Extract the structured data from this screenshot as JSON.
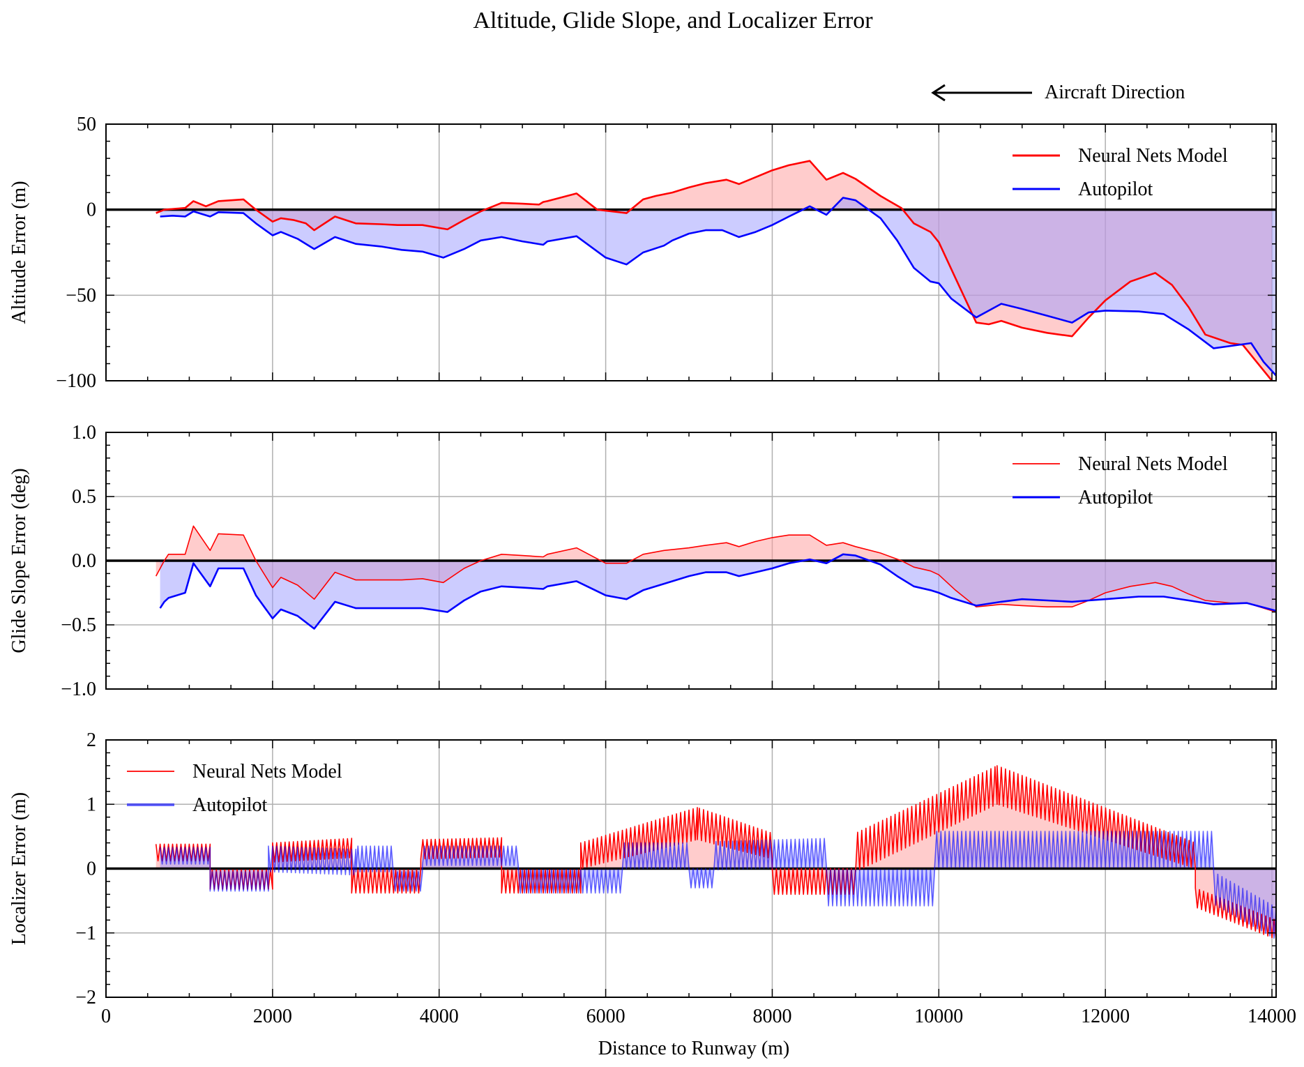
{
  "figure": {
    "title": "Altitude, Glide Slope, and Localizer Error",
    "direction_label": "Aircraft Direction",
    "xlabel": "Distance to Runway (m)"
  },
  "colors": {
    "nn": "#ff0000",
    "ap": "#0000ff",
    "nn_fill": "#ff9999",
    "ap_fill": "#9999ff",
    "zero": "#000000",
    "grid": "#b0b0b0"
  },
  "icons": {
    "direction_arrow": "left-arrow-icon"
  },
  "chart_data": [
    {
      "type": "line",
      "ylabel": "Altitude Error (m)",
      "xlim": [
        0,
        14050
      ],
      "ylim": [
        -100,
        50
      ],
      "yticks": [
        -100,
        -50,
        0,
        50
      ],
      "xticks": [
        0,
        2000,
        4000,
        6000,
        8000,
        10000,
        12000,
        14000
      ],
      "grid": true,
      "legend": "top-right",
      "baseline": 0,
      "series": [
        {
          "name": "Neural Nets Model",
          "x": [
            600,
            700,
            950,
            1050,
            1200,
            1350,
            1650,
            1800,
            2000,
            2100,
            2250,
            2400,
            2500,
            2750,
            3000,
            3300,
            3500,
            3800,
            4100,
            4300,
            4500,
            4750,
            5000,
            5200,
            5250,
            5300,
            5650,
            5900,
            6250,
            6450,
            6600,
            6800,
            7000,
            7200,
            7450,
            7600,
            7800,
            8000,
            8200,
            8450,
            8650,
            8850,
            9000,
            9300,
            9550,
            9700,
            9900,
            10000,
            10200,
            10450,
            10600,
            10750,
            11000,
            11300,
            11600,
            11800,
            12000,
            12300,
            12600,
            12800,
            13000,
            13200,
            13500,
            13650,
            13800,
            14000
          ],
          "y": [
            -2,
            0,
            1,
            5,
            2,
            5,
            6,
            0,
            -7,
            -5,
            -6,
            -8,
            -12,
            -4,
            -8,
            -8.5,
            -9,
            -9,
            -11.5,
            -6,
            -1,
            4,
            3.5,
            3,
            4.5,
            5,
            9.5,
            0,
            -2,
            6,
            8,
            10,
            13,
            15.5,
            17.5,
            15,
            19,
            23,
            26,
            28.5,
            17.5,
            21.5,
            18,
            8,
            1,
            -8,
            -13,
            -19,
            -40,
            -66,
            -67,
            -65,
            -69,
            -72,
            -74,
            -63,
            -53,
            -42,
            -37,
            -44,
            -57,
            -73,
            -78,
            -79,
            -88,
            -100
          ]
        },
        {
          "name": "Autopilot",
          "x": [
            650,
            800,
            950,
            1050,
            1250,
            1350,
            1650,
            1800,
            2000,
            2100,
            2300,
            2500,
            2750,
            3000,
            3300,
            3550,
            3800,
            4050,
            4300,
            4500,
            4750,
            5000,
            5250,
            5300,
            5650,
            6000,
            6250,
            6450,
            6700,
            6800,
            7000,
            7200,
            7400,
            7600,
            7800,
            8000,
            8200,
            8450,
            8650,
            8850,
            9000,
            9300,
            9500,
            9700,
            9900,
            10000,
            10150,
            10450,
            10600,
            10750,
            11000,
            11300,
            11600,
            11800,
            12000,
            12400,
            12700,
            13000,
            13300,
            13600,
            13750,
            13900,
            14050
          ],
          "y": [
            -4,
            -3.5,
            -4,
            -1,
            -4,
            -1.5,
            -2,
            -8,
            -15,
            -13,
            -17,
            -23,
            -16,
            -20,
            -21.5,
            -23.5,
            -24.5,
            -28,
            -23,
            -18,
            -16,
            -18.5,
            -20.5,
            -18.5,
            -15.5,
            -28,
            -32,
            -25,
            -21,
            -18,
            -14,
            -12,
            -12,
            -16,
            -13,
            -9,
            -4,
            2,
            -3,
            7,
            5.5,
            -5,
            -18,
            -34,
            -42,
            -43,
            -52,
            -63,
            -59,
            -55,
            -58,
            -62,
            -66,
            -60,
            -59,
            -59.5,
            -61,
            -70,
            -81,
            -79,
            -78,
            -89,
            -97
          ]
        }
      ]
    },
    {
      "type": "line",
      "ylabel": "Glide Slope Error (deg)",
      "xlim": [
        0,
        14050
      ],
      "ylim": [
        -1.0,
        1.0
      ],
      "yticks": [
        -1.0,
        -0.5,
        0.0,
        0.5,
        1.0
      ],
      "xticks": [
        0,
        2000,
        4000,
        6000,
        8000,
        10000,
        12000,
        14000
      ],
      "grid": true,
      "legend": "top-right",
      "baseline": 0,
      "series": [
        {
          "name": "Neural Nets Model",
          "x": [
            600,
            700,
            750,
            950,
            1050,
            1250,
            1350,
            1650,
            1800,
            2000,
            2100,
            2300,
            2500,
            2750,
            3000,
            3300,
            3550,
            3800,
            4050,
            4300,
            4500,
            4750,
            5000,
            5250,
            5300,
            5650,
            6000,
            6250,
            6450,
            6700,
            7000,
            7200,
            7450,
            7600,
            7800,
            8000,
            8200,
            8450,
            8650,
            8850,
            9000,
            9300,
            9550,
            9700,
            9900,
            10000,
            10200,
            10450,
            10600,
            10750,
            11000,
            11300,
            11600,
            11800,
            12000,
            12300,
            12600,
            12800,
            13000,
            13200,
            13500,
            13700,
            13850,
            14050
          ],
          "y": [
            -0.12,
            0.0,
            0.05,
            0.05,
            0.27,
            0.08,
            0.21,
            0.2,
            0.0,
            -0.21,
            -0.13,
            -0.19,
            -0.3,
            -0.09,
            -0.15,
            -0.15,
            -0.15,
            -0.14,
            -0.17,
            -0.06,
            0.0,
            0.05,
            0.04,
            0.03,
            0.05,
            0.1,
            -0.02,
            -0.02,
            0.05,
            0.08,
            0.1,
            0.12,
            0.14,
            0.11,
            0.15,
            0.18,
            0.2,
            0.2,
            0.12,
            0.14,
            0.11,
            0.06,
            0.0,
            -0.05,
            -0.08,
            -0.11,
            -0.23,
            -0.36,
            -0.35,
            -0.34,
            -0.35,
            -0.36,
            -0.36,
            -0.31,
            -0.25,
            -0.2,
            -0.17,
            -0.2,
            -0.26,
            -0.31,
            -0.33,
            -0.33,
            -0.36,
            -0.4
          ]
        },
        {
          "name": "Autopilot",
          "x": [
            650,
            700,
            750,
            950,
            1050,
            1250,
            1350,
            1650,
            1800,
            2000,
            2100,
            2300,
            2500,
            2750,
            3000,
            3300,
            3550,
            3800,
            4100,
            4300,
            4500,
            4750,
            5000,
            5250,
            5300,
            5650,
            6000,
            6250,
            6450,
            6700,
            7000,
            7200,
            7450,
            7600,
            7800,
            8000,
            8200,
            8450,
            8650,
            8850,
            9000,
            9300,
            9500,
            9700,
            9900,
            10000,
            10150,
            10450,
            10750,
            11000,
            11300,
            11600,
            11800,
            12000,
            12400,
            12700,
            13000,
            13300,
            13700,
            14050
          ],
          "y": [
            -0.37,
            -0.32,
            -0.29,
            -0.25,
            -0.02,
            -0.2,
            -0.06,
            -0.06,
            -0.27,
            -0.45,
            -0.38,
            -0.43,
            -0.53,
            -0.32,
            -0.37,
            -0.37,
            -0.37,
            -0.37,
            -0.4,
            -0.31,
            -0.24,
            -0.2,
            -0.21,
            -0.22,
            -0.2,
            -0.16,
            -0.27,
            -0.3,
            -0.23,
            -0.18,
            -0.12,
            -0.09,
            -0.09,
            -0.12,
            -0.09,
            -0.06,
            -0.02,
            0.01,
            -0.02,
            0.05,
            0.04,
            -0.03,
            -0.12,
            -0.2,
            -0.23,
            -0.25,
            -0.29,
            -0.35,
            -0.32,
            -0.3,
            -0.31,
            -0.32,
            -0.31,
            -0.3,
            -0.28,
            -0.28,
            -0.31,
            -0.34,
            -0.33,
            -0.39
          ]
        }
      ]
    },
    {
      "type": "line",
      "ylabel": "Localizer Error (m)",
      "xlim": [
        0,
        14050
      ],
      "ylim": [
        -2,
        2
      ],
      "yticks": [
        -2,
        -1,
        0,
        1,
        2
      ],
      "xticks": [
        0,
        2000,
        4000,
        6000,
        8000,
        10000,
        12000,
        14000
      ],
      "grid": true,
      "legend": "top-left",
      "baseline": 0,
      "oscillation_period": 50,
      "series": [
        {
          "name": "Neural Nets Model",
          "segments": [
            {
              "x": [
                600,
                1250
              ],
              "center": [
                0.25,
                0.25
              ],
              "amplitude": [
                0.13,
                0.13
              ]
            },
            {
              "x": [
                1250,
                2000
              ],
              "center": [
                -0.17,
                -0.17
              ],
              "amplitude": [
                0.15,
                0.15
              ]
            },
            {
              "x": [
                2000,
                2950
              ],
              "center": [
                0.25,
                0.32
              ],
              "amplitude": [
                0.15,
                0.15
              ]
            },
            {
              "x": [
                2950,
                3780
              ],
              "center": [
                -0.2,
                -0.2
              ],
              "amplitude": [
                0.18,
                0.18
              ]
            },
            {
              "x": [
                3780,
                4750
              ],
              "center": [
                0.3,
                0.33
              ],
              "amplitude": [
                0.15,
                0.15
              ]
            },
            {
              "x": [
                4750,
                5700
              ],
              "center": [
                -0.2,
                -0.2
              ],
              "amplitude": [
                0.18,
                0.18
              ]
            },
            {
              "x": [
                5700,
                7100
              ],
              "center": [
                0.2,
                0.7
              ],
              "amplitude": [
                0.2,
                0.25
              ]
            },
            {
              "x": [
                7100,
                8000
              ],
              "center": [
                0.7,
                0.35
              ],
              "amplitude": [
                0.25,
                0.2
              ]
            },
            {
              "x": [
                8000,
                9000
              ],
              "center": [
                -0.2,
                -0.2
              ],
              "amplitude": [
                0.2,
                0.2
              ]
            },
            {
              "x": [
                9000,
                10700
              ],
              "center": [
                0.25,
                1.3
              ],
              "amplitude": [
                0.3,
                0.3
              ]
            },
            {
              "x": [
                10700,
                13080
              ],
              "center": [
                1.3,
                0.2
              ],
              "amplitude": [
                0.3,
                0.2
              ]
            },
            {
              "x": [
                13080,
                14050
              ],
              "center": [
                -0.45,
                -0.95
              ],
              "amplitude": [
                0.15,
                0.15
              ]
            }
          ]
        },
        {
          "name": "Autopilot",
          "segments": [
            {
              "x": [
                650,
                1250
              ],
              "center": [
                0.2,
                0.2
              ],
              "amplitude": [
                0.13,
                0.13
              ]
            },
            {
              "x": [
                1250,
                1950
              ],
              "center": [
                -0.2,
                -0.2
              ],
              "amplitude": [
                0.15,
                0.15
              ]
            },
            {
              "x": [
                1950,
                3000
              ],
              "center": [
                0.15,
                0.1
              ],
              "amplitude": [
                0.2,
                0.2
              ]
            },
            {
              "x": [
                3000,
                3450
              ],
              "center": [
                0.15,
                0.15
              ],
              "amplitude": [
                0.2,
                0.2
              ]
            },
            {
              "x": [
                3450,
                3800
              ],
              "center": [
                -0.2,
                -0.2
              ],
              "amplitude": [
                0.15,
                0.15
              ]
            },
            {
              "x": [
                3800,
                4950
              ],
              "center": [
                0.2,
                0.2
              ],
              "amplitude": [
                0.15,
                0.15
              ]
            },
            {
              "x": [
                4950,
                6200
              ],
              "center": [
                -0.2,
                -0.2
              ],
              "amplitude": [
                0.18,
                0.18
              ]
            },
            {
              "x": [
                6200,
                7000
              ],
              "center": [
                0.2,
                0.2
              ],
              "amplitude": [
                0.2,
                0.2
              ]
            },
            {
              "x": [
                7000,
                7300
              ],
              "center": [
                -0.15,
                -0.15
              ],
              "amplitude": [
                0.15,
                0.15
              ]
            },
            {
              "x": [
                7300,
                8650
              ],
              "center": [
                0.2,
                0.25
              ],
              "amplitude": [
                0.22,
                0.22
              ]
            },
            {
              "x": [
                8650,
                9950
              ],
              "center": [
                -0.3,
                -0.3
              ],
              "amplitude": [
                0.28,
                0.28
              ]
            },
            {
              "x": [
                9950,
                13300
              ],
              "center": [
                0.3,
                0.3
              ],
              "amplitude": [
                0.28,
                0.28
              ]
            },
            {
              "x": [
                13300,
                14050
              ],
              "center": [
                -0.3,
                -0.85
              ],
              "amplitude": [
                0.25,
                0.25
              ]
            }
          ]
        }
      ]
    }
  ]
}
